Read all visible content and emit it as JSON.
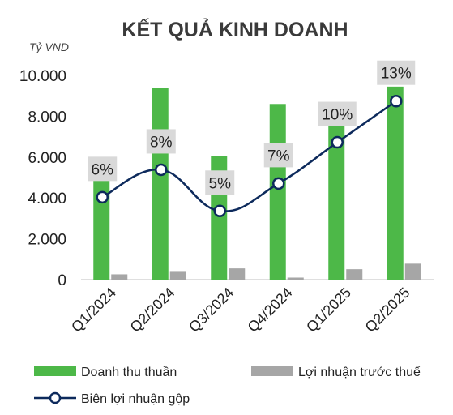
{
  "chart_data": {
    "type": "bar",
    "title": "KẾT QUẢ KINH DOANH",
    "unit_label": "Tỷ VND",
    "categories": [
      "Q1/2024",
      "Q2/2024",
      "Q3/2024",
      "Q4/2024",
      "Q1/2025",
      "Q2/2025"
    ],
    "ylim": [
      0,
      10000
    ],
    "yticks": [
      "0",
      "2.000",
      "4.000",
      "6.000",
      "8.000",
      "10.000"
    ],
    "ytick_values": [
      0,
      2000,
      4000,
      6000,
      8000,
      10000
    ],
    "series": [
      {
        "name": "Doanh thu thuần",
        "kind": "bar",
        "color": "#4db848",
        "values": [
          4900,
          9400,
          6050,
          8600,
          7750,
          9450
        ]
      },
      {
        "name": "Lợi nhuận trước thuế",
        "kind": "bar",
        "color": "#a6a6a6",
        "values": [
          260,
          420,
          550,
          100,
          510,
          780
        ]
      },
      {
        "name": "Biên lợi nhuận gộp",
        "kind": "line",
        "color": "#0d2a5c",
        "values": [
          6,
          8,
          5,
          7,
          10,
          13
        ],
        "labels": [
          "6%",
          "8%",
          "5%",
          "7%",
          "10%",
          "13%"
        ]
      }
    ],
    "line_scale": {
      "min": 0,
      "max": 18
    },
    "grid": false,
    "legend_position": "bottom"
  }
}
